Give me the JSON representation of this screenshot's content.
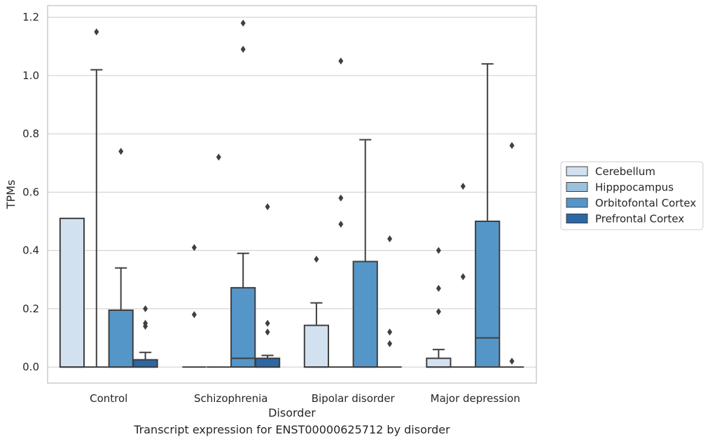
{
  "chart_data": {
    "type": "box",
    "xlabel": "Disorder",
    "ylabel": "TPMs",
    "caption": "Transcript expression for ENST00000625712 by disorder",
    "ylim": [
      -0.055,
      1.24
    ],
    "yticks": [
      0.0,
      0.2,
      0.4,
      0.6,
      0.8,
      1.0,
      1.2
    ],
    "ytick_labels": [
      "0.0",
      "0.2",
      "0.4",
      "0.6",
      "0.8",
      "1.0",
      "1.2"
    ],
    "grid": "horizontal",
    "legend_position": "right",
    "categories": [
      "Control",
      "Schizophrenia",
      "Bipolar disorder",
      "Major depression"
    ],
    "series": [
      {
        "name": "Cerebellum",
        "color": "#d2e1f0",
        "boxes": [
          {
            "q1": 0.0,
            "median": 0.0,
            "q3": 0.51,
            "whisker_low": 0.0,
            "whisker_high": 0.51,
            "outliers": []
          },
          {
            "q1": 0.0,
            "median": 0.0,
            "q3": 0.0,
            "whisker_low": 0.0,
            "whisker_high": 0.0,
            "outliers": [
              0.41,
              0.18
            ]
          },
          {
            "q1": 0.0,
            "median": 0.0,
            "q3": 0.143,
            "whisker_low": 0.0,
            "whisker_high": 0.22,
            "outliers": [
              0.37
            ]
          },
          {
            "q1": 0.0,
            "median": 0.0,
            "q3": 0.03,
            "whisker_low": 0.0,
            "whisker_high": 0.06,
            "outliers": [
              0.4,
              0.27,
              0.19
            ]
          }
        ]
      },
      {
        "name": "Hipppocampus",
        "color": "#9ac1de",
        "boxes": [
          {
            "q1": 0.0,
            "median": 0.0,
            "q3": 0.0,
            "whisker_low": 0.0,
            "whisker_high": 1.02,
            "outliers": [
              1.15
            ]
          },
          {
            "q1": 0.0,
            "median": 0.0,
            "q3": 0.0,
            "whisker_low": 0.0,
            "whisker_high": 0.0,
            "outliers": [
              0.72
            ]
          },
          {
            "q1": 0.0,
            "median": 0.0,
            "q3": 0.0,
            "whisker_low": 0.0,
            "whisker_high": 0.0,
            "outliers": [
              1.05,
              0.58,
              0.49
            ]
          },
          {
            "q1": 0.0,
            "median": 0.0,
            "q3": 0.0,
            "whisker_low": 0.0,
            "whisker_high": 0.0,
            "outliers": [
              0.62,
              0.31
            ]
          }
        ]
      },
      {
        "name": "Orbitofontal Cortex",
        "color": "#5596c8",
        "boxes": [
          {
            "q1": 0.0,
            "median": 0.0,
            "q3": 0.195,
            "whisker_low": 0.0,
            "whisker_high": 0.34,
            "outliers": [
              0.74
            ]
          },
          {
            "q1": 0.0,
            "median": 0.03,
            "q3": 0.272,
            "whisker_low": 0.0,
            "whisker_high": 0.39,
            "outliers": [
              1.18,
              1.09
            ]
          },
          {
            "q1": 0.0,
            "median": 0.0,
            "q3": 0.362,
            "whisker_low": 0.0,
            "whisker_high": 0.78,
            "outliers": []
          },
          {
            "q1": 0.0,
            "median": 0.1,
            "q3": 0.5,
            "whisker_low": 0.0,
            "whisker_high": 1.04,
            "outliers": []
          }
        ]
      },
      {
        "name": "Prefrontal Cortex",
        "color": "#2a68a6",
        "boxes": [
          {
            "q1": 0.0,
            "median": 0.0,
            "q3": 0.025,
            "whisker_low": 0.0,
            "whisker_high": 0.05,
            "outliers": [
              0.2,
              0.15,
              0.14
            ]
          },
          {
            "q1": 0.0,
            "median": 0.0,
            "q3": 0.03,
            "whisker_low": 0.0,
            "whisker_high": 0.04,
            "outliers": [
              0.55,
              0.15,
              0.12
            ]
          },
          {
            "q1": 0.0,
            "median": 0.0,
            "q3": 0.0,
            "whisker_low": 0.0,
            "whisker_high": 0.0,
            "outliers": [
              0.44,
              0.12,
              0.08
            ]
          },
          {
            "q1": 0.0,
            "median": 0.0,
            "q3": 0.0,
            "whisker_low": 0.0,
            "whisker_high": 0.0,
            "outliers": [
              0.76,
              0.02
            ]
          }
        ]
      }
    ]
  }
}
